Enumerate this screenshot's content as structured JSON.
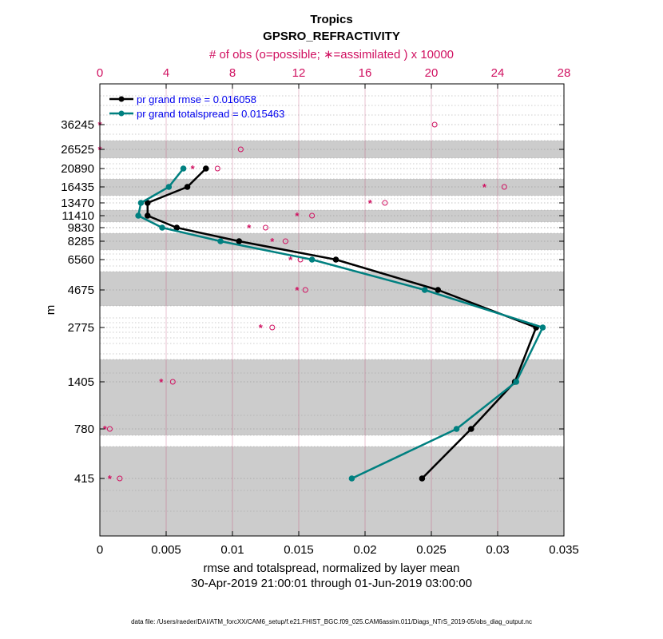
{
  "chart_data": {
    "type": "line",
    "title": "Tropics",
    "subtitle": "GPSRO_REFRACTIVITY",
    "top_axis_label": "# of obs (o=possible; ∗=assimilated ) x 10000",
    "xlabel": "rmse and totalspread, normalized by layer mean",
    "xlabel2": "30-Apr-2019 21:00:01 through 01-Jun-2019 03:00:00",
    "ylabel": "m",
    "footer": "data file: /Users/raeder/DAI/ATM_forcXX/CAM6_setup/f.e21.FHIST_BGC.f09_025.CAM6assim.011/Diags_NTrS_2019-05/obs_diag_output.nc",
    "xlim": [
      0,
      0.035
    ],
    "x_ticks": [
      "0",
      "0.005",
      "0.01",
      "0.015",
      "0.02",
      "0.025",
      "0.03",
      "0.035"
    ],
    "top_xlim": [
      0,
      28
    ],
    "top_ticks": [
      "0",
      "4",
      "8",
      "12",
      "16",
      "20",
      "24",
      "28"
    ],
    "levels": [
      "36245",
      "26525",
      "20890",
      "16435",
      "13470",
      "11410",
      "9830",
      "8285",
      "6560",
      "4675",
      "2775",
      "1405",
      "780",
      "415"
    ],
    "series": [
      {
        "name": "pr grand rmse = 0.016058",
        "color": "#000000",
        "levels": [
          "20890",
          "16435",
          "13470",
          "11410",
          "9830",
          "8285",
          "6560",
          "4675",
          "2775",
          "1405",
          "780",
          "415"
        ],
        "values": [
          0.008,
          0.0066,
          0.0036,
          0.0036,
          0.0058,
          0.0105,
          0.0178,
          0.0255,
          0.0329,
          0.0313,
          0.028,
          0.0243
        ]
      },
      {
        "name": "pr grand totalspread = 0.015463",
        "color": "#008080",
        "levels": [
          "20890",
          "16435",
          "13470",
          "11410",
          "9830",
          "8285",
          "6560",
          "4675",
          "2775",
          "1405",
          "780",
          "415"
        ],
        "values": [
          0.0063,
          0.0052,
          0.0031,
          0.0029,
          0.0047,
          0.0091,
          0.016,
          0.0245,
          0.0334,
          0.0314,
          0.0269,
          0.019
        ]
      }
    ],
    "obs_possible": {
      "levels": [
        "36245",
        "26525",
        "20890",
        "16435",
        "13470",
        "11410",
        "9830",
        "8285",
        "6560",
        "4675",
        "2775",
        "1405",
        "780",
        "415"
      ],
      "values": [
        20.2,
        8.5,
        7.1,
        24.4,
        17.2,
        12.8,
        10.0,
        11.2,
        12.1,
        12.4,
        10.4,
        4.4,
        0.6,
        1.2
      ]
    },
    "obs_assimilated": {
      "levels": [
        "36245",
        "26525",
        "20890",
        "16435",
        "13470",
        "11410",
        "9830",
        "8285",
        "6560",
        "4675",
        "2775",
        "1405",
        "780",
        "415"
      ],
      "values": [
        0.0,
        0.0,
        5.6,
        23.2,
        16.3,
        11.9,
        9.0,
        10.4,
        11.5,
        11.9,
        9.7,
        3.7,
        0.3,
        0.6
      ]
    },
    "colors": {
      "top_axis": "#d01060",
      "shade": "#cccccc",
      "rmse": "#000000",
      "spread": "#008080"
    }
  }
}
